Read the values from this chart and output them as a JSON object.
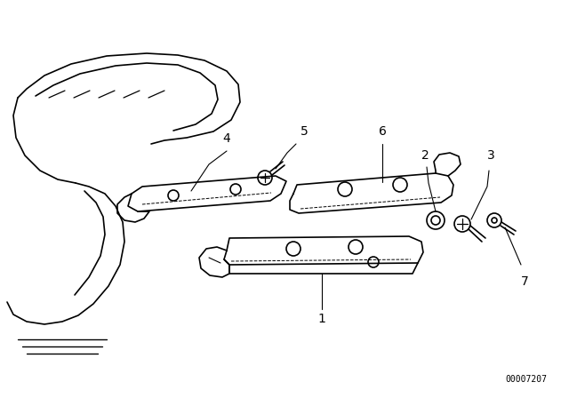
{
  "bg_color": "#ffffff",
  "line_color": "#000000",
  "part_number_text": "00007207",
  "figsize": [
    6.4,
    4.48
  ],
  "dpi": 100
}
